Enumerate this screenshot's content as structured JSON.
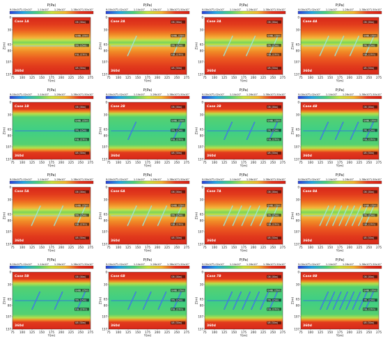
{
  "colorbar": {
    "title": "P(Pa)",
    "ticks": [
      "9.00x10⁶",
      "1.02x10⁷",
      "1.14x10⁷",
      "1.26x10⁷",
      "1.38x10⁷",
      "1.50x10⁷"
    ],
    "gradient_colors": [
      "#2a3fd8",
      "#22a7e6",
      "#4ad07a",
      "#c8e23a",
      "#f5b42c",
      "#e8361e",
      "#d41e12"
    ]
  },
  "axes": {
    "ylabel": "Z(m)",
    "xlabel": "Y(m)",
    "yticks": [
      "0",
      "30",
      "65",
      "80",
      "107",
      "137"
    ],
    "xticks": [
      "75",
      "100",
      "125",
      "150",
      "175",
      "200",
      "225",
      "250",
      "275"
    ]
  },
  "layer_labels": {
    "OB": "OB (30m)",
    "GHBL": "GHBL (35m)",
    "TPL": "TPL (15m)",
    "FGL": "FGL (27m)",
    "UB": "UB (30m)"
  },
  "time_label": "360d",
  "panels": [
    {
      "case": "Case 1A",
      "row": 0,
      "col": 0,
      "fractures": 0,
      "bg": "red"
    },
    {
      "case": "Case 2A",
      "row": 0,
      "col": 1,
      "fractures": 2,
      "bg": "red"
    },
    {
      "case": "Case 3A",
      "row": 0,
      "col": 2,
      "fractures": 3,
      "bg": "red"
    },
    {
      "case": "Case 4A",
      "row": 0,
      "col": 3,
      "fractures": 4,
      "bg": "red"
    },
    {
      "case": "Case 1B",
      "row": 1,
      "col": 0,
      "fractures": 0,
      "bg": "green"
    },
    {
      "case": "Case 2B",
      "row": 1,
      "col": 1,
      "fractures": 2,
      "bg": "green"
    },
    {
      "case": "Case 3B",
      "row": 1,
      "col": 2,
      "fractures": 3,
      "bg": "green"
    },
    {
      "case": "Case 4B",
      "row": 1,
      "col": 3,
      "fractures": 4,
      "bg": "green"
    },
    {
      "case": "Case 5A",
      "row": 2,
      "col": 0,
      "fractures": 3,
      "bg": "red"
    },
    {
      "case": "Case 6A",
      "row": 2,
      "col": 1,
      "fractures": 4,
      "bg": "red"
    },
    {
      "case": "Case 7A",
      "row": 2,
      "col": 2,
      "fractures": 6,
      "bg": "red"
    },
    {
      "case": "Case 8A",
      "row": 2,
      "col": 3,
      "fractures": 8,
      "bg": "red"
    },
    {
      "case": "Case 5B",
      "row": 3,
      "col": 0,
      "fractures": 3,
      "bg": "green"
    },
    {
      "case": "Case 6B",
      "row": 3,
      "col": 1,
      "fractures": 4,
      "bg": "green"
    },
    {
      "case": "Case 7B",
      "row": 3,
      "col": 2,
      "fractures": 6,
      "bg": "green"
    },
    {
      "case": "Case 8B",
      "row": 3,
      "col": 3,
      "fractures": 8,
      "bg": "green"
    }
  ]
}
